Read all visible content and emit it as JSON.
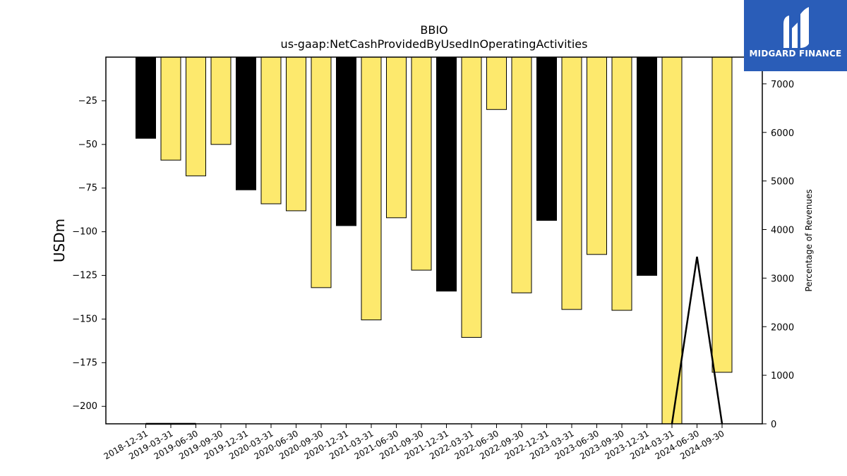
{
  "brand": {
    "name": "MIDGARD FINANCE"
  },
  "chart_data": {
    "type": "bar",
    "title": "BBIO",
    "subtitle": "us-gaap:NetCashProvidedByUsedInOperatingActivities",
    "ylabel": "USDm",
    "y2label": "Percentage of Revenues",
    "ylim": [
      -210,
      0
    ],
    "y2lim": [
      0,
      7550
    ],
    "yticks": [
      -25,
      -50,
      -75,
      -100,
      -125,
      -150,
      -175,
      -200
    ],
    "y2ticks": [
      0,
      1000,
      2000,
      3000,
      4000,
      5000,
      6000,
      7000
    ],
    "categories": [
      "2018-12-31",
      "2019-03-31",
      "2019-06-30",
      "2019-09-30",
      "2019-12-31",
      "2020-03-31",
      "2020-06-30",
      "2020-09-30",
      "2020-12-31",
      "2021-03-31",
      "2021-06-30",
      "2021-09-30",
      "2021-12-31",
      "2022-03-31",
      "2022-06-30",
      "2022-09-30",
      "2022-12-31",
      "2023-03-31",
      "2023-06-30",
      "2023-09-30",
      "2023-12-31",
      "2024-03-31",
      "2024-06-30",
      "2024-09-30"
    ],
    "series": [
      {
        "type": "bar",
        "values": [
          -46.5,
          -59,
          -68,
          -50,
          -76,
          -84,
          -88,
          -132,
          -96.5,
          -150.5,
          -92,
          -122,
          -134,
          -160.5,
          -30,
          -135,
          -93.5,
          -144.5,
          -113,
          -145,
          -125,
          -215,
          null,
          -180.5
        ],
        "bar_colors": [
          "#000000",
          "#fde96d",
          "#fde96d",
          "#fde96d",
          "#000000",
          "#fde96d",
          "#fde96d",
          "#fde96d",
          "#000000",
          "#fde96d",
          "#fde96d",
          "#fde96d",
          "#000000",
          "#fde96d",
          "#fde96d",
          "#fde96d",
          "#000000",
          "#fde96d",
          "#fde96d",
          "#fde96d",
          "#000000",
          "#fde96d",
          "#fde96d",
          "#fde96d"
        ]
      },
      {
        "type": "line",
        "axis": "right",
        "color": "#000000",
        "values": [
          0,
          0,
          0,
          null,
          null,
          0,
          null,
          null,
          null,
          null,
          null,
          null,
          null,
          null,
          null,
          null,
          null,
          null,
          null,
          null,
          null,
          0,
          3440,
          0
        ]
      }
    ],
    "grid": false,
    "legend": "none"
  }
}
